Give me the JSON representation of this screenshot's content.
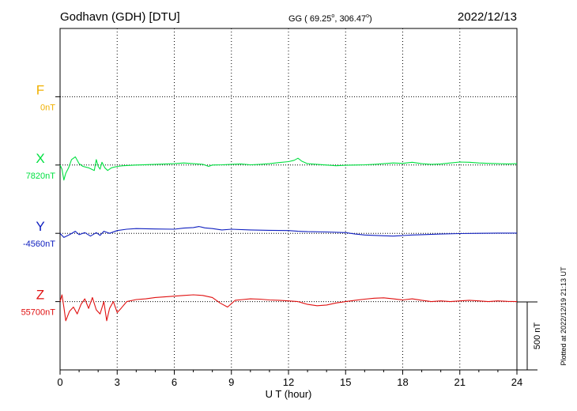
{
  "header": {
    "station": "Godhavn (GDH)  [DTU]",
    "coords_prefix": "GG ( 69.25",
    "coords_lat_sup": "o",
    "coords_mid": ", 306.47",
    "coords_lon_sup": "o",
    "coords_suffix": ")",
    "date": "2022/12/13"
  },
  "plotted_note": "Plotted at 2022/12/19 21:13 UT",
  "chart_data": {
    "type": "line",
    "xlabel": "U T (hour)",
    "xlim": [
      0,
      24
    ],
    "xticks": [
      0,
      3,
      6,
      9,
      12,
      15,
      18,
      21,
      24
    ],
    "scale_bar": {
      "label": "500 nT",
      "value_nT": 500
    },
    "grid": true,
    "units": "nT",
    "series": [
      {
        "name": "F",
        "baseline_label": "0nT",
        "baseline_nT": 0,
        "color": "#f0b000",
        "x": [],
        "y": []
      },
      {
        "name": "X",
        "baseline_label": "7820nT",
        "baseline_nT": 7820,
        "color": "#00e040",
        "x": [
          0,
          0.1,
          0.2,
          0.3,
          0.45,
          0.6,
          0.8,
          1.0,
          1.2,
          1.5,
          1.8,
          1.9,
          2.0,
          2.1,
          2.2,
          2.35,
          2.5,
          2.7,
          3.0,
          3.3,
          4,
          5,
          6,
          6.5,
          7,
          7.5,
          7.8,
          8,
          8.5,
          9,
          9.5,
          10,
          10.5,
          11,
          11.5,
          12,
          12.3,
          12.5,
          12.7,
          13,
          13.5,
          14,
          14.5,
          15,
          15.5,
          16,
          16.5,
          17,
          17.5,
          18,
          18.5,
          19,
          19.5,
          20,
          20.5,
          21,
          21.5,
          22,
          22.5,
          23,
          23.5,
          24
        ],
        "y": [
          7820,
          7790,
          7710,
          7760,
          7800,
          7860,
          7880,
          7830,
          7810,
          7800,
          7780,
          7860,
          7810,
          7790,
          7840,
          7800,
          7780,
          7800,
          7810,
          7815,
          7820,
          7825,
          7830,
          7835,
          7830,
          7825,
          7810,
          7820,
          7822,
          7825,
          7828,
          7822,
          7825,
          7830,
          7838,
          7845,
          7855,
          7870,
          7848,
          7830,
          7825,
          7820,
          7815,
          7818,
          7820,
          7822,
          7825,
          7830,
          7835,
          7832,
          7840,
          7830,
          7825,
          7828,
          7835,
          7842,
          7840,
          7835,
          7832,
          7830,
          7828,
          7830
        ]
      },
      {
        "name": "Y",
        "baseline_label": "-4560nT",
        "baseline_nT": -4560,
        "color": "#1020c0",
        "x": [
          0,
          0.2,
          0.5,
          0.8,
          1.0,
          1.3,
          1.6,
          1.9,
          2.1,
          2.3,
          2.6,
          3.0,
          3.5,
          4,
          5,
          6,
          6.5,
          7,
          7.3,
          7.6,
          8,
          8.5,
          9,
          10,
          11,
          12,
          12.5,
          13,
          14,
          15,
          15.5,
          16,
          16.5,
          17,
          17.5,
          18,
          18.5,
          19,
          20,
          21,
          22,
          23,
          24
        ],
        "y": [
          -4560,
          -4590,
          -4570,
          -4545,
          -4570,
          -4555,
          -4580,
          -4555,
          -4575,
          -4545,
          -4560,
          -4540,
          -4530,
          -4525,
          -4528,
          -4530,
          -4522,
          -4518,
          -4510,
          -4520,
          -4525,
          -4535,
          -4530,
          -4535,
          -4538,
          -4540,
          -4545,
          -4548,
          -4550,
          -4555,
          -4565,
          -4572,
          -4575,
          -4578,
          -4580,
          -4576,
          -4572,
          -4570,
          -4565,
          -4562,
          -4560,
          -4558,
          -4558
        ]
      },
      {
        "name": "Z",
        "baseline_label": "55700nT",
        "baseline_nT": 55700,
        "color": "#e01010",
        "x": [
          0,
          0.1,
          0.2,
          0.3,
          0.5,
          0.7,
          0.9,
          1.1,
          1.3,
          1.5,
          1.7,
          1.9,
          2.1,
          2.3,
          2.45,
          2.6,
          2.8,
          3.0,
          3.2,
          3.5,
          4,
          4.5,
          5,
          5.5,
          6,
          6.5,
          7,
          7.5,
          8,
          8.4,
          8.8,
          9.2,
          9.6,
          10,
          10.5,
          11,
          11.5,
          12,
          12.5,
          13,
          13.5,
          14,
          14.5,
          15,
          15.5,
          16,
          16.5,
          17,
          17.5,
          18,
          18.5,
          19,
          19.5,
          20,
          20.5,
          21,
          21.5,
          22,
          22.5,
          23,
          23.5,
          24
        ],
        "y": [
          55700,
          55750,
          55660,
          55560,
          55630,
          55660,
          55610,
          55680,
          55720,
          55650,
          55730,
          55640,
          55610,
          55700,
          55560,
          55650,
          55700,
          55620,
          55650,
          55700,
          55715,
          55720,
          55730,
          55735,
          55740,
          55745,
          55750,
          55745,
          55730,
          55690,
          55660,
          55710,
          55715,
          55720,
          55718,
          55712,
          55710,
          55705,
          55700,
          55680,
          55670,
          55675,
          55690,
          55700,
          55710,
          55718,
          55725,
          55728,
          55720,
          55712,
          55720,
          55710,
          55700,
          55705,
          55700,
          55705,
          55710,
          55705,
          55700,
          55705,
          55702,
          55700
        ]
      }
    ]
  }
}
